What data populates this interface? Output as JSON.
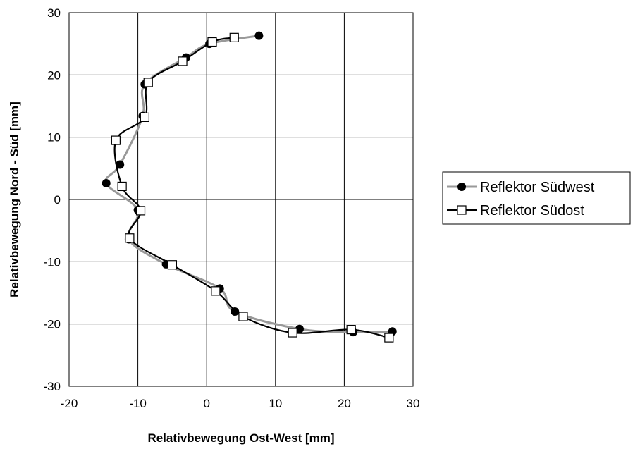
{
  "chart_data": {
    "type": "scatter",
    "title": "",
    "xlabel": "Relativbewegung Ost-West [mm]",
    "ylabel": "Relativbewegung Nord - Süd [mm]",
    "xlim": [
      -20,
      30
    ],
    "ylim": [
      -30,
      30
    ],
    "xticks": [
      -20,
      -10,
      0,
      10,
      20,
      30
    ],
    "yticks": [
      -30,
      -20,
      -10,
      0,
      10,
      20,
      30
    ],
    "grid": true,
    "legend_position": "right",
    "series": [
      {
        "name": "Reflektor Südwest",
        "line_color": "#999999",
        "marker": "filled-circle",
        "marker_color": "#000000",
        "points": [
          [
            7.6,
            26.3
          ],
          [
            0.4,
            25.0
          ],
          [
            -3.0,
            22.8
          ],
          [
            -9.0,
            18.5
          ],
          [
            -9.3,
            13.4
          ],
          [
            -12.6,
            5.6
          ],
          [
            -14.6,
            2.6
          ],
          [
            -10.0,
            -1.7
          ],
          [
            -11.3,
            -6.4
          ],
          [
            -5.9,
            -10.4
          ],
          [
            1.9,
            -14.3
          ],
          [
            4.1,
            -18.0
          ],
          [
            13.5,
            -20.8
          ],
          [
            21.3,
            -21.3
          ],
          [
            27.0,
            -21.2
          ]
        ]
      },
      {
        "name": "Reflektor Südost",
        "line_color": "#000000",
        "marker": "open-square",
        "marker_color": "#000000",
        "points": [
          [
            4.0,
            26.0
          ],
          [
            0.8,
            25.3
          ],
          [
            -3.5,
            22.2
          ],
          [
            -8.5,
            18.8
          ],
          [
            -9.0,
            13.2
          ],
          [
            -13.2,
            9.5
          ],
          [
            -12.3,
            2.1
          ],
          [
            -9.6,
            -1.8
          ],
          [
            -11.2,
            -6.2
          ],
          [
            -5.0,
            -10.5
          ],
          [
            1.3,
            -14.7
          ],
          [
            5.3,
            -18.8
          ],
          [
            12.5,
            -21.4
          ],
          [
            21.0,
            -20.9
          ],
          [
            26.5,
            -22.2
          ]
        ]
      }
    ]
  }
}
